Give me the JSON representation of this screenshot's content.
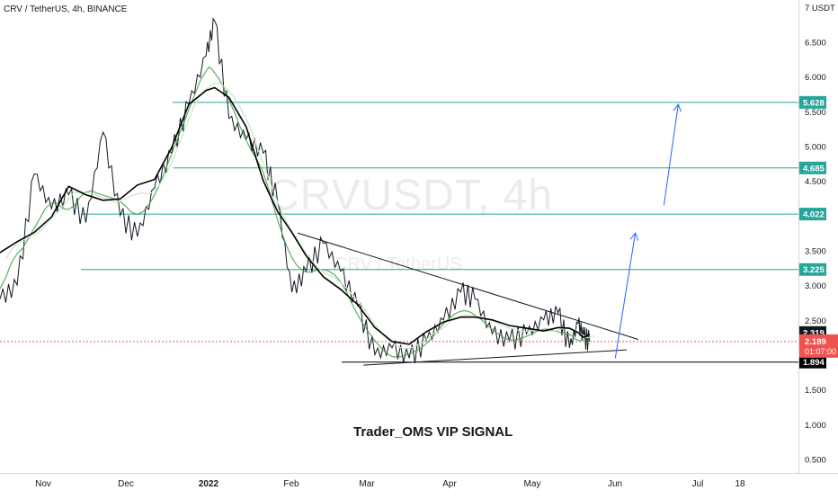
{
  "header": {
    "symbol_line": "CRV / TetherUS, 4h, BINANCE"
  },
  "watermark": {
    "ticker": "CRVUSDT, 4h",
    "pair": "CRV / TetherUS"
  },
  "caption": "Trader_OMS VIP SIGNAL",
  "chart_data": {
    "type": "line",
    "title": "CRV / TetherUS, 4h, BINANCE",
    "xlabel": "",
    "ylabel": "",
    "y_unit": "USDT",
    "ylim": [
      0.3,
      7.1
    ],
    "grid": false,
    "x_tick_labels": [
      "Nov",
      "Dec",
      "2022",
      "Feb",
      "Mar",
      "Apr",
      "May",
      "Jun",
      "Jul",
      "18"
    ],
    "y_tick_labels": [
      "7 USDT",
      "6.500",
      "6.000",
      "5.500",
      "5.000",
      "4.500",
      "3.500",
      "3.000",
      "2.500",
      "1.500",
      "1.000",
      "0.500"
    ],
    "horizontal_levels": [
      {
        "value": 5.628,
        "label": "5.628",
        "color": "#26a69a"
      },
      {
        "value": 4.685,
        "label": "4.685",
        "color": "#26a69a"
      },
      {
        "value": 4.022,
        "label": "4.022",
        "color": "#26a69a"
      },
      {
        "value": 3.225,
        "label": "3.225",
        "color": "#26a69a"
      },
      {
        "value": 1.894,
        "label": "1.894",
        "color": "#000000"
      }
    ],
    "price_label": {
      "value": 2.319,
      "label": "2.319"
    },
    "current_price": {
      "value": 2.189,
      "label": "2.189",
      "countdown": "01:07:00",
      "color": "#ef5350"
    },
    "series": [
      {
        "color": "#131722",
        "x": [
          "2021-10-20",
          "2021-10-26",
          "2021-11-01",
          "2021-11-07",
          "2021-11-13",
          "2021-11-19",
          "2021-11-25",
          "2021-12-01",
          "2021-12-07",
          "2021-12-13",
          "2021-12-19",
          "2021-12-25",
          "2021-12-31",
          "2022-01-03",
          "2022-01-08",
          "2022-01-14",
          "2022-01-20",
          "2022-01-25",
          "2022-01-30",
          "2022-02-04",
          "2022-02-10",
          "2022-02-16",
          "2022-02-22",
          "2022-02-28",
          "2022-03-06",
          "2022-03-12",
          "2022-03-18",
          "2022-03-24",
          "2022-03-30",
          "2022-04-04",
          "2022-04-10",
          "2022-04-16",
          "2022-04-22",
          "2022-04-28",
          "2022-05-03",
          "2022-05-07",
          "2022-05-10",
          "2022-05-12",
          "2022-05-14"
        ],
        "y": [
          2.8,
          3.0,
          4.6,
          4.1,
          4.3,
          3.9,
          5.2,
          4.0,
          3.7,
          4.4,
          4.9,
          5.6,
          6.3,
          6.8,
          5.4,
          5.1,
          4.9,
          4.2,
          2.9,
          3.2,
          3.6,
          3.2,
          2.7,
          2.0,
          2.1,
          1.95,
          2.2,
          2.5,
          2.9,
          2.8,
          2.3,
          2.2,
          2.3,
          2.5,
          2.6,
          2.1,
          2.45,
          2.25,
          2.189
        ]
      }
    ],
    "trendlines": [
      {
        "name": "descending-resistance",
        "from": {
          "x": "2022-02-01",
          "y": 3.75
        },
        "to": {
          "x": "2022-05-31",
          "y": 2.22
        },
        "color": "#131722"
      },
      {
        "name": "ascending-support",
        "from": {
          "x": "2022-02-24",
          "y": 1.85
        },
        "to": {
          "x": "2022-05-27",
          "y": 2.07
        },
        "color": "#131722"
      }
    ],
    "projection_arrows": [
      {
        "name": "arrow-to-3-8",
        "from": {
          "x": "2022-05-23",
          "y": 1.95
        },
        "to": {
          "x": "2022-05-30",
          "y": 3.75
        },
        "color": "#2962ff"
      },
      {
        "name": "arrow-to-5-6",
        "from": {
          "x": "2022-06-09",
          "y": 4.15
        },
        "to": {
          "x": "2022-06-14",
          "y": 5.6
        },
        "color": "#2962ff"
      }
    ]
  }
}
